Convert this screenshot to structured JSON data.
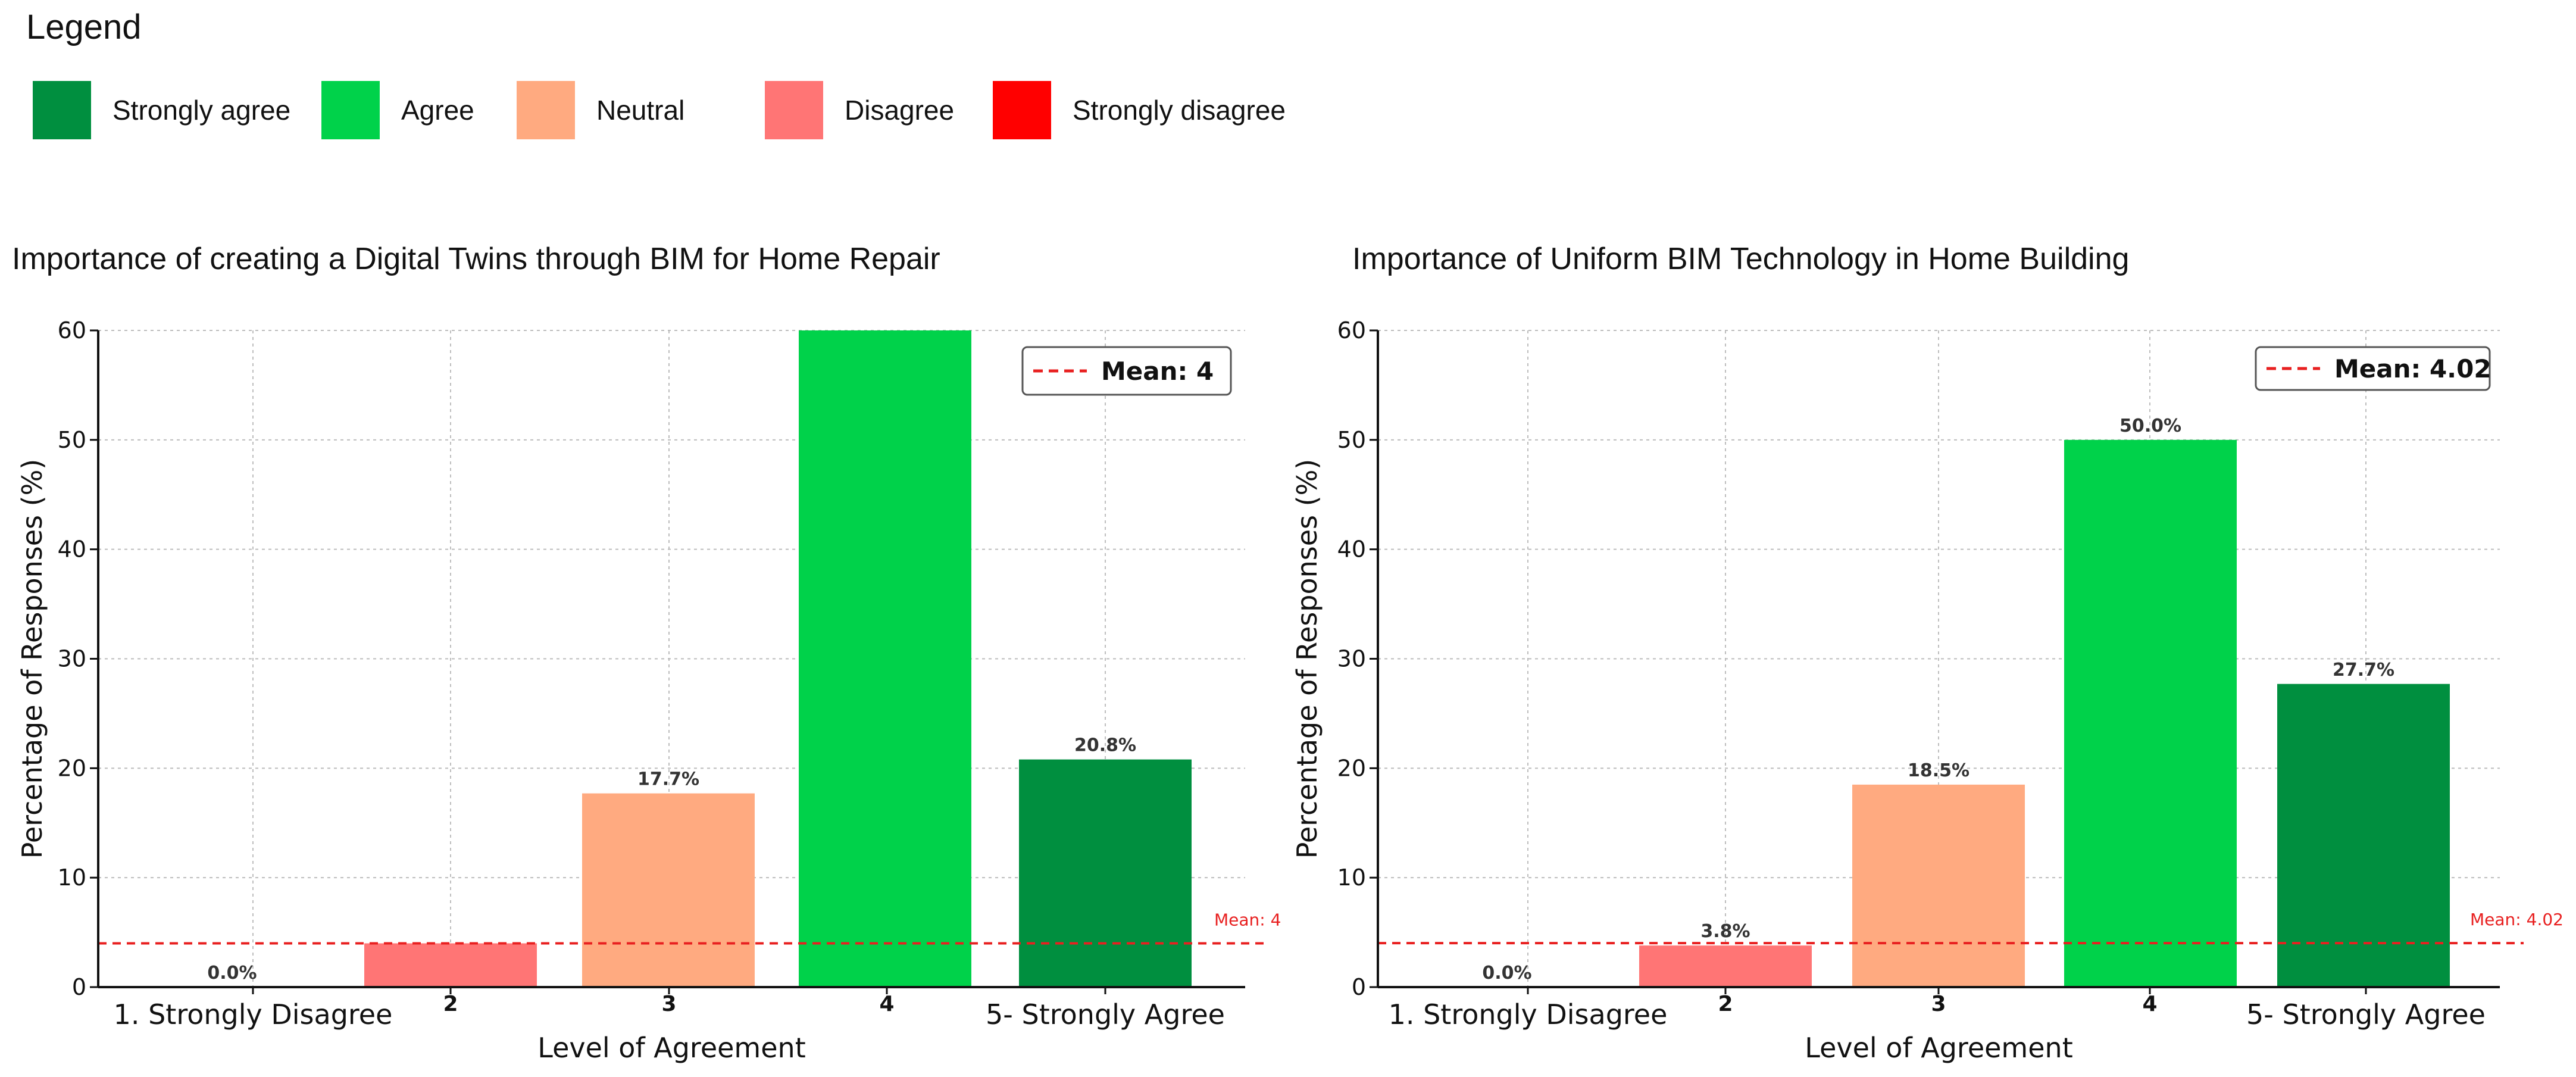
{
  "legend": {
    "title": "Legend",
    "items": [
      {
        "label": "Strongly agree",
        "color": "#008f3f"
      },
      {
        "label": "Agree",
        "color": "#00d24a"
      },
      {
        "label": "Neutral",
        "color": "#ffaa80"
      },
      {
        "label": "Disagree",
        "color": "#ff7575"
      },
      {
        "label": "Strongly disagree",
        "color": "#ff0000"
      }
    ]
  },
  "chart_data": [
    {
      "type": "bar",
      "title": "Importance of creating a Digital Twins through BIM for Home Repair",
      "xlabel": "Level of Agreement",
      "ylabel": "Percentage of Responses (%)",
      "categories": [
        "1. Strongly Disagree",
        "2",
        "3",
        "4",
        "5- Strongly Agree"
      ],
      "values": [
        0.0,
        4.0,
        17.7,
        60.0,
        20.8
      ],
      "value_labels": [
        "0.0%",
        "",
        "17.7%",
        "",
        "20.8%"
      ],
      "colors": [
        "#ff0000",
        "#ff7575",
        "#ffaa80",
        "#00d24a",
        "#008f3f"
      ],
      "ylim": [
        0,
        60
      ],
      "yticks": [
        0,
        10,
        20,
        30,
        40,
        50,
        60
      ],
      "mean": 4,
      "mean_label": "Mean: 4",
      "legend_label": "Mean: 4",
      "legend_placement": "top-right",
      "grid": true
    },
    {
      "type": "bar",
      "title": "Importance of Uniform BIM Technology in Home Building",
      "xlabel": "Level of Agreement",
      "ylabel": "Percentage of Responses (%)",
      "categories": [
        "1. Strongly Disagree",
        "2",
        "3",
        "4",
        "5- Strongly Agree"
      ],
      "values": [
        0.0,
        3.8,
        18.5,
        50.0,
        27.7
      ],
      "value_labels": [
        "0.0%",
        "3.8%",
        "18.5%",
        "50.0%",
        "27.7%"
      ],
      "colors": [
        "#ff0000",
        "#ff7575",
        "#ffaa80",
        "#00d24a",
        "#008f3f"
      ],
      "ylim": [
        0,
        60
      ],
      "yticks": [
        0,
        10,
        20,
        30,
        40,
        50,
        60
      ],
      "mean": 4.02,
      "mean_label": "Mean: 4.02",
      "legend_label": "Mean: 4.02",
      "legend_placement": "top-right",
      "grid": true
    }
  ]
}
